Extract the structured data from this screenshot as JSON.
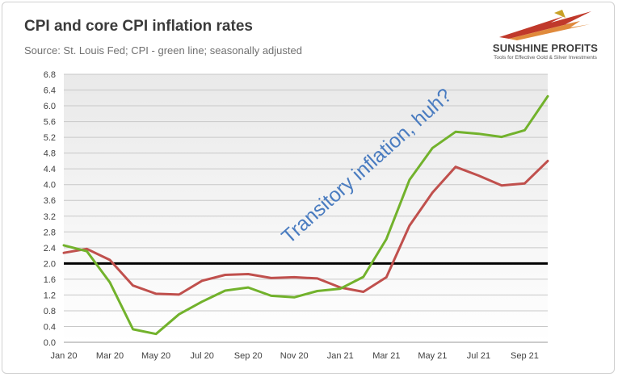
{
  "title": "CPI and core CPI inflation rates",
  "subtitle": "Source: St. Louis Fed; CPI - green line; seasonally adjusted",
  "logo": {
    "name": "SUNSHINE PROFITS",
    "tagline": "Tools for Effective Gold & Silver Investments"
  },
  "annotation": "Transitory inflation, huh?",
  "colors": {
    "cpi": "#72b22c",
    "core_cpi": "#c0504d",
    "reference_line": "#000000",
    "annotation": "#4a7cc0"
  },
  "chart_data": {
    "type": "line",
    "title": "CPI and core CPI inflation rates",
    "x": [
      "Jan 20",
      "Feb 20",
      "Mar 20",
      "Apr 20",
      "May 20",
      "Jun 20",
      "Jul 20",
      "Aug 20",
      "Sep 20",
      "Oct 20",
      "Nov 20",
      "Dec 20",
      "Jan 21",
      "Feb 21",
      "Mar 21",
      "Apr 21",
      "May 21",
      "Jun 21",
      "Jul 21",
      "Aug 21",
      "Sep 21",
      "Oct 21"
    ],
    "x_tick_labels": [
      "Jan 20",
      "Mar 20",
      "May 20",
      "Jul 20",
      "Sep 20",
      "Nov 20",
      "Jan 21",
      "Mar 21",
      "May 21",
      "Jul 21",
      "Sep 21"
    ],
    "y_tick_labels": [
      "0.0",
      "0.4",
      "0.8",
      "1.2",
      "1.6",
      "2.0",
      "2.4",
      "2.8",
      "3.2",
      "3.6",
      "4.0",
      "4.4",
      "4.8",
      "5.2",
      "5.6",
      "6.0",
      "6.4",
      "6.8"
    ],
    "ylim": [
      0,
      6.8
    ],
    "grid": true,
    "reference_line": 2.0,
    "series": [
      {
        "color": "#72b22c",
        "values": [
          2.46,
          2.31,
          1.52,
          0.33,
          0.21,
          0.71,
          1.03,
          1.31,
          1.39,
          1.18,
          1.14,
          1.3,
          1.36,
          1.66,
          2.62,
          4.12,
          4.93,
          5.34,
          5.29,
          5.21,
          5.38,
          6.24
        ]
      },
      {
        "color": "#c0504d",
        "values": [
          2.27,
          2.37,
          2.09,
          1.44,
          1.23,
          1.21,
          1.56,
          1.71,
          1.73,
          1.63,
          1.65,
          1.62,
          1.39,
          1.28,
          1.65,
          2.96,
          3.8,
          4.45,
          4.23,
          3.98,
          4.03,
          4.6
        ]
      }
    ]
  }
}
